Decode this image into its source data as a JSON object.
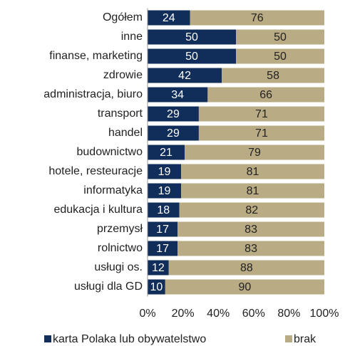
{
  "chart_data": {
    "type": "stacked-barh",
    "categories": [
      "Ogółem",
      "inne",
      "finanse, marketing",
      "zdrowie",
      "administracja, biuro",
      "transport",
      "handel",
      "budownictwo",
      "hotele, resteuracje",
      "informatyka",
      "edukacja i kultura",
      "przemysł",
      "rolnictwo",
      "usługi os.",
      "usługi dla GD"
    ],
    "series": [
      {
        "name": "karta Polaka lub obywatelstwo",
        "color": "#112d5a",
        "values": [
          24,
          50,
          50,
          42,
          34,
          29,
          29,
          21,
          19,
          19,
          18,
          17,
          17,
          12,
          10
        ]
      },
      {
        "name": "brak",
        "color": "#b9ab84",
        "values": [
          76,
          50,
          50,
          58,
          66,
          71,
          71,
          79,
          81,
          81,
          82,
          83,
          83,
          88,
          90
        ]
      }
    ],
    "xlim": [
      0,
      100
    ],
    "xticks": [
      {
        "value": 0,
        "label": "0%"
      },
      {
        "value": 20,
        "label": "20%"
      },
      {
        "value": 40,
        "label": "40%"
      },
      {
        "value": 60,
        "label": "60%"
      },
      {
        "value": 80,
        "label": "80%"
      },
      {
        "value": 100,
        "label": "100%"
      }
    ],
    "legend": "bottom"
  }
}
